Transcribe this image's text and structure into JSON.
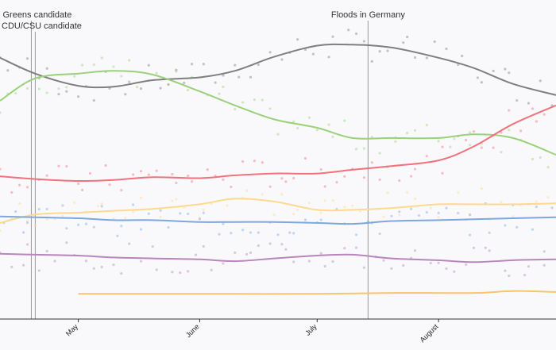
{
  "chart_data": {
    "type": "line",
    "title": "",
    "xlabel": "",
    "ylabel": "",
    "x_domain": [
      "2021-04-11",
      "2021-08-31"
    ],
    "y_domain": [
      0,
      33
    ],
    "x_ticks": [
      {
        "date": "2021-05-01",
        "label": "May"
      },
      {
        "date": "2021-06-01",
        "label": "June"
      },
      {
        "date": "2021-07-01",
        "label": "July"
      },
      {
        "date": "2021-08-01",
        "label": "August"
      }
    ],
    "annotations": [
      {
        "date": "2021-04-19",
        "label": "Greens candidate",
        "display": "< Greens candidate"
      },
      {
        "date": "2021-04-20",
        "label": "CDU/CSU candidate",
        "display": "CDU/CSU candidate"
      },
      {
        "date": "2021-07-14",
        "label": "Floods in Germany",
        "display": "Floods in Germany"
      }
    ],
    "grid": false,
    "legend": "none",
    "series": [
      {
        "color": "#7f7f7f",
        "points": [
          [
            "2021-04-11",
            28
          ],
          [
            "2021-04-20",
            26.3
          ],
          [
            "2021-05-01",
            25
          ],
          [
            "2021-05-10",
            24.9
          ],
          [
            "2021-05-20",
            25.6
          ],
          [
            "2021-06-01",
            25.9
          ],
          [
            "2021-06-10",
            26.6
          ],
          [
            "2021-06-20",
            28.1
          ],
          [
            "2021-07-01",
            29.3
          ],
          [
            "2021-07-10",
            29.4
          ],
          [
            "2021-07-20",
            29.1
          ],
          [
            "2021-08-01",
            28
          ],
          [
            "2021-08-10",
            26.9
          ],
          [
            "2021-08-20",
            25.2
          ],
          [
            "2021-08-31",
            24
          ]
        ]
      },
      {
        "color": "#9bd07d",
        "points": [
          [
            "2021-04-11",
            23.4
          ],
          [
            "2021-04-20",
            25.8
          ],
          [
            "2021-05-01",
            26.3
          ],
          [
            "2021-05-10",
            26.6
          ],
          [
            "2021-05-20",
            26.2
          ],
          [
            "2021-06-01",
            24.4
          ],
          [
            "2021-06-10",
            22.9
          ],
          [
            "2021-06-20",
            21.4
          ],
          [
            "2021-07-01",
            20.5
          ],
          [
            "2021-07-10",
            19.4
          ],
          [
            "2021-07-20",
            19.4
          ],
          [
            "2021-08-01",
            19.4
          ],
          [
            "2021-08-10",
            19.8
          ],
          [
            "2021-08-20",
            19.4
          ],
          [
            "2021-08-31",
            17.6
          ]
        ]
      },
      {
        "color": "#f0727c",
        "points": [
          [
            "2021-04-11",
            15.3
          ],
          [
            "2021-04-20",
            15
          ],
          [
            "2021-05-01",
            14.8
          ],
          [
            "2021-05-10",
            14.9
          ],
          [
            "2021-05-20",
            15.2
          ],
          [
            "2021-06-01",
            15.1
          ],
          [
            "2021-06-10",
            15.4
          ],
          [
            "2021-06-20",
            15.6
          ],
          [
            "2021-07-01",
            15.6
          ],
          [
            "2021-07-10",
            16
          ],
          [
            "2021-07-20",
            16.4
          ],
          [
            "2021-08-01",
            17
          ],
          [
            "2021-08-10",
            18.5
          ],
          [
            "2021-08-20",
            20.9
          ],
          [
            "2021-08-31",
            22.9
          ]
        ]
      },
      {
        "color": "#fcd98f",
        "points": [
          [
            "2021-04-11",
            10.3
          ],
          [
            "2021-04-20",
            11.2
          ],
          [
            "2021-05-01",
            11.4
          ],
          [
            "2021-05-10",
            11.6
          ],
          [
            "2021-05-20",
            11.8
          ],
          [
            "2021-06-01",
            12.3
          ],
          [
            "2021-06-10",
            12.9
          ],
          [
            "2021-06-20",
            12.6
          ],
          [
            "2021-07-01",
            11.7
          ],
          [
            "2021-07-10",
            11.7
          ],
          [
            "2021-07-20",
            11.9
          ],
          [
            "2021-08-01",
            12.3
          ],
          [
            "2021-08-10",
            12.3
          ],
          [
            "2021-08-20",
            12.3
          ],
          [
            "2021-08-31",
            12.4
          ]
        ]
      },
      {
        "color": "#7ea6e0",
        "points": [
          [
            "2021-04-11",
            11
          ],
          [
            "2021-04-20",
            10.9
          ],
          [
            "2021-05-01",
            10.8
          ],
          [
            "2021-05-10",
            10.6
          ],
          [
            "2021-05-20",
            10.6
          ],
          [
            "2021-06-01",
            10.4
          ],
          [
            "2021-06-10",
            10.4
          ],
          [
            "2021-06-20",
            10.4
          ],
          [
            "2021-07-01",
            10.3
          ],
          [
            "2021-07-10",
            10.2
          ],
          [
            "2021-07-20",
            10.5
          ],
          [
            "2021-08-01",
            10.6
          ],
          [
            "2021-08-10",
            10.7
          ],
          [
            "2021-08-20",
            10.8
          ],
          [
            "2021-08-31",
            10.9
          ]
        ]
      },
      {
        "color": "#b886bd",
        "points": [
          [
            "2021-04-11",
            7
          ],
          [
            "2021-04-20",
            6.9
          ],
          [
            "2021-05-01",
            6.8
          ],
          [
            "2021-05-10",
            6.6
          ],
          [
            "2021-05-20",
            6.5
          ],
          [
            "2021-06-01",
            6.4
          ],
          [
            "2021-06-10",
            6.2
          ],
          [
            "2021-06-20",
            6.5
          ],
          [
            "2021-07-01",
            6.8
          ],
          [
            "2021-07-10",
            6.9
          ],
          [
            "2021-07-20",
            6.5
          ],
          [
            "2021-08-01",
            6.3
          ],
          [
            "2021-08-10",
            6.1
          ],
          [
            "2021-08-20",
            6.3
          ],
          [
            "2021-08-31",
            6.4
          ]
        ]
      },
      {
        "color": "#f9c46b",
        "points": [
          [
            "2021-05-01",
            2.7
          ],
          [
            "2021-05-20",
            2.7
          ],
          [
            "2021-06-10",
            2.7
          ],
          [
            "2021-07-01",
            2.7
          ],
          [
            "2021-07-20",
            2.8
          ],
          [
            "2021-08-10",
            2.8
          ],
          [
            "2021-08-20",
            3.0
          ],
          [
            "2021-08-31",
            2.9
          ]
        ]
      }
    ]
  }
}
